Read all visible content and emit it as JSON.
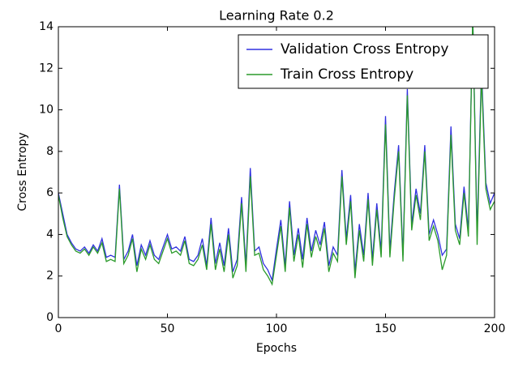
{
  "chart_data": {
    "type": "line",
    "title": "Learning Rate 0.2",
    "xlabel": "Epochs",
    "ylabel": "Cross Entropy",
    "x": [
      0,
      2,
      4,
      6,
      8,
      10,
      12,
      14,
      16,
      18,
      20,
      22,
      24,
      26,
      28,
      30,
      32,
      34,
      36,
      38,
      40,
      42,
      44,
      46,
      48,
      50,
      52,
      54,
      56,
      58,
      60,
      62,
      64,
      66,
      68,
      70,
      72,
      74,
      76,
      78,
      80,
      82,
      84,
      86,
      88,
      90,
      92,
      94,
      96,
      98,
      100,
      102,
      104,
      106,
      108,
      110,
      112,
      114,
      116,
      118,
      120,
      122,
      124,
      126,
      128,
      130,
      132,
      134,
      136,
      138,
      140,
      142,
      144,
      146,
      148,
      150,
      152,
      154,
      156,
      158,
      160,
      162,
      164,
      166,
      168,
      170,
      172,
      174,
      176,
      178,
      180,
      182,
      184,
      186,
      188,
      190,
      192,
      194,
      196,
      198,
      200
    ],
    "series": [
      {
        "name": "Validation Cross Entropy",
        "color": "#3030e0",
        "values": [
          6.0,
          5.0,
          4.0,
          3.6,
          3.3,
          3.2,
          3.4,
          3.1,
          3.5,
          3.2,
          3.8,
          2.9,
          3.0,
          2.9,
          6.4,
          2.8,
          3.2,
          4.0,
          2.5,
          3.5,
          3.0,
          3.7,
          3.0,
          2.8,
          3.4,
          4.0,
          3.3,
          3.4,
          3.2,
          3.9,
          2.8,
          2.7,
          3.0,
          3.8,
          2.5,
          4.8,
          2.6,
          3.6,
          2.5,
          4.3,
          2.2,
          2.8,
          5.8,
          2.5,
          7.2,
          3.2,
          3.4,
          2.6,
          2.3,
          1.8,
          3.3,
          4.7,
          2.5,
          5.6,
          3.0,
          4.3,
          2.8,
          4.8,
          3.2,
          4.2,
          3.5,
          4.6,
          2.5,
          3.4,
          3.0,
          7.1,
          3.8,
          5.9,
          2.2,
          4.5,
          3.0,
          6.0,
          2.8,
          5.5,
          3.2,
          9.7,
          3.2,
          6.0,
          8.3,
          3.0,
          11.0,
          4.5,
          6.2,
          5.0,
          8.3,
          4.0,
          4.7,
          4.0,
          3.0,
          3.3,
          9.2,
          4.5,
          3.8,
          6.3,
          4.2,
          14.5,
          4.0,
          12.0,
          6.5,
          5.5,
          6.0
        ]
      },
      {
        "name": "Train Cross Entropy",
        "color": "#2a9a2a",
        "values": [
          5.9,
          4.8,
          3.9,
          3.5,
          3.2,
          3.1,
          3.3,
          3.0,
          3.4,
          3.1,
          3.6,
          2.7,
          2.8,
          2.7,
          6.2,
          2.6,
          3.0,
          3.8,
          2.2,
          3.3,
          2.8,
          3.5,
          2.8,
          2.6,
          3.2,
          3.8,
          3.1,
          3.2,
          3.0,
          3.7,
          2.6,
          2.5,
          2.8,
          3.5,
          2.3,
          4.5,
          2.3,
          3.3,
          2.2,
          4.0,
          1.9,
          2.5,
          5.5,
          2.2,
          6.8,
          3.0,
          3.1,
          2.3,
          2.0,
          1.6,
          3.0,
          4.4,
          2.2,
          5.3,
          2.7,
          4.0,
          2.4,
          4.5,
          2.9,
          3.9,
          3.2,
          4.3,
          2.2,
          3.1,
          2.7,
          6.8,
          3.5,
          5.6,
          1.9,
          4.2,
          2.7,
          5.7,
          2.5,
          5.2,
          2.9,
          9.3,
          2.9,
          5.7,
          8.0,
          2.7,
          10.7,
          4.2,
          5.9,
          4.7,
          8.0,
          3.7,
          4.4,
          3.7,
          2.3,
          3.0,
          8.8,
          4.2,
          3.5,
          6.0,
          3.9,
          14.5,
          3.5,
          11.6,
          6.2,
          5.2,
          5.6
        ]
      }
    ],
    "xlim": [
      0,
      200
    ],
    "ylim": [
      0,
      14
    ],
    "xticks": [
      0,
      50,
      100,
      150,
      200
    ],
    "yticks": [
      0,
      2,
      4,
      6,
      8,
      10,
      12,
      14
    ],
    "legend": "upper right"
  }
}
